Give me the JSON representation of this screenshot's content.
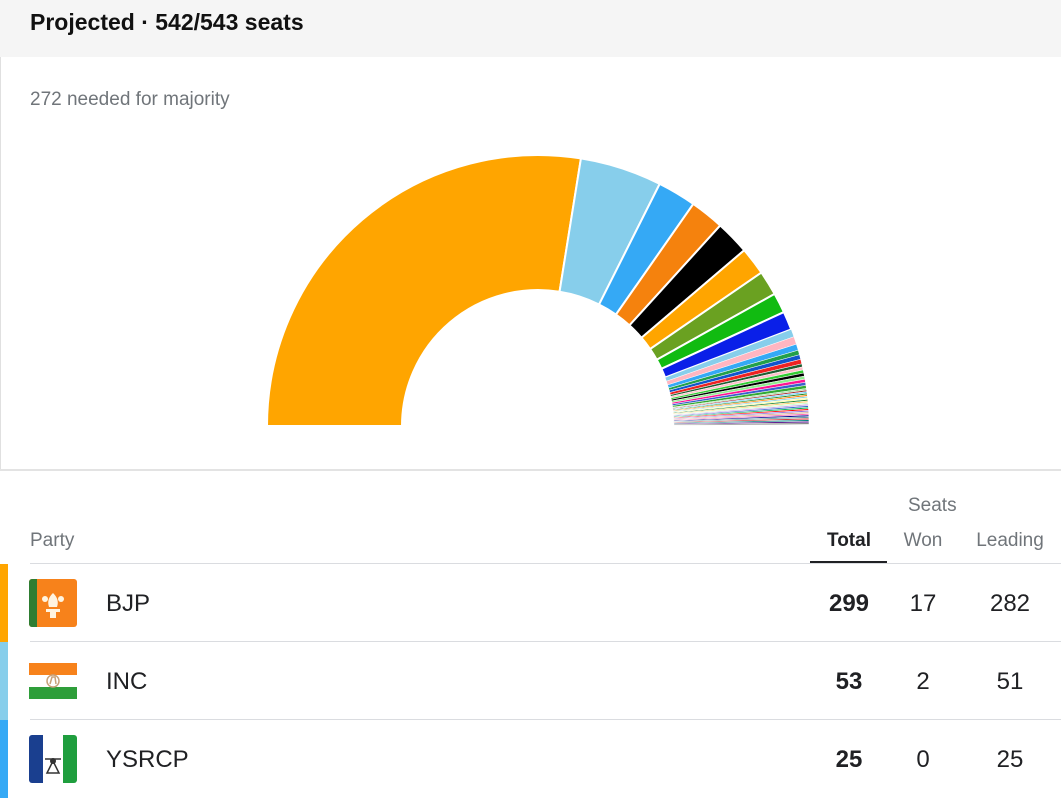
{
  "header": {
    "title": "Projected · 542/543 seats"
  },
  "subtitle": "272 needed for majority",
  "table": {
    "seats_label": "Seats",
    "columns": {
      "party": "Party",
      "total": "Total",
      "won": "Won",
      "leading": "Leading"
    },
    "rows": [
      {
        "party": "BJP",
        "total": "299",
        "won": "17",
        "leading": "282",
        "color": "#ffa500",
        "flag": "bjp-flag-icon"
      },
      {
        "party": "INC",
        "total": "53",
        "won": "2",
        "leading": "51",
        "color": "#87ceeb",
        "flag": "inc-flag-icon"
      },
      {
        "party": "YSRCP",
        "total": "25",
        "won": "0",
        "leading": "25",
        "color": "#35a9f5",
        "flag": "ysrcp-flag-icon"
      }
    ]
  },
  "chart_data": {
    "type": "semicircle-donut",
    "total_seats": 543,
    "majority": 272,
    "segments": [
      {
        "seats": 299,
        "color": "#ffa500"
      },
      {
        "seats": 53,
        "color": "#87ceeb"
      },
      {
        "seats": 25,
        "color": "#35a9f5"
      },
      {
        "seats": 22,
        "color": "#f5820d"
      },
      {
        "seats": 22,
        "color": "#000000"
      },
      {
        "seats": 18,
        "color": "#ffa500"
      },
      {
        "seats": 16,
        "color": "#6aa121"
      },
      {
        "seats": 13,
        "color": "#11bb11"
      },
      {
        "seats": 12,
        "color": "#0a1fe8"
      },
      {
        "seats": 5,
        "color": "#87ceeb"
      },
      {
        "seats": 5,
        "color": "#ffb6c1"
      },
      {
        "seats": 4,
        "color": "#35a9f5"
      },
      {
        "seats": 3,
        "color": "#22a04a"
      },
      {
        "seats": 3,
        "color": "#1155cc"
      },
      {
        "seats": 3,
        "color": "#ee2222"
      },
      {
        "seats": 2,
        "color": "#1e5e32"
      },
      {
        "seats": 2,
        "color": "#ffc0cb"
      },
      {
        "seats": 2,
        "color": "#33cc33"
      },
      {
        "seats": 2,
        "color": "#000000"
      },
      {
        "seats": 2,
        "color": "#90ee90"
      },
      {
        "seats": 2,
        "color": "#ff1493"
      },
      {
        "seats": 2,
        "color": "#3a5fcd"
      },
      {
        "seats": 2,
        "color": "#33aa33"
      },
      {
        "seats": 1,
        "color": "#99dd99"
      },
      {
        "seats": 1,
        "color": "#a52a2a"
      },
      {
        "seats": 1,
        "color": "#66ccff"
      },
      {
        "seats": 1,
        "color": "#228b22"
      },
      {
        "seats": 1,
        "color": "#ff7f00"
      },
      {
        "seats": 1,
        "color": "#8fd0e0"
      },
      {
        "seats": 1,
        "color": "#ffff99"
      },
      {
        "seats": 1,
        "color": "#228833"
      },
      {
        "seats": 1,
        "color": "#ffcc66"
      },
      {
        "seats": 1,
        "color": "#ccffcc"
      },
      {
        "seats": 1,
        "color": "#c8a0e6"
      },
      {
        "seats": 1,
        "color": "#3366cc"
      },
      {
        "seats": 1,
        "color": "#00b050"
      },
      {
        "seats": 1,
        "color": "#ff0000"
      },
      {
        "seats": 1,
        "color": "#9370db"
      },
      {
        "seats": 1,
        "color": "#d2b48c"
      },
      {
        "seats": 1,
        "color": "#ff69b4"
      },
      {
        "seats": 1,
        "color": "#00008b"
      },
      {
        "seats": 1,
        "color": "#5f9ea0"
      },
      {
        "seats": 1,
        "color": "#cc3333"
      },
      {
        "seats": 1,
        "color": "#008080"
      },
      {
        "seats": 1,
        "color": "#4b0082"
      },
      {
        "seats": 1,
        "color": "#777777"
      }
    ]
  }
}
